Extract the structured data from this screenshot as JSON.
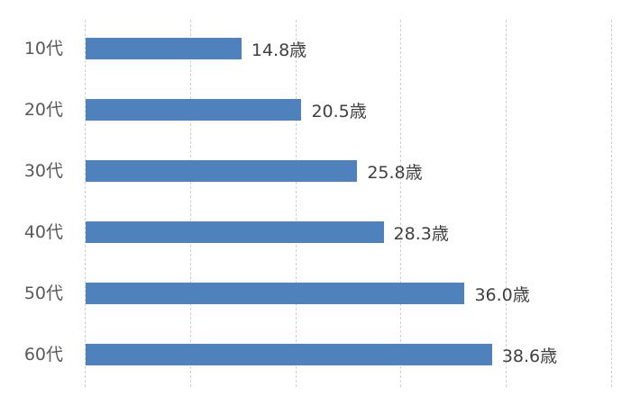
{
  "chart_data": {
    "type": "bar",
    "orientation": "horizontal",
    "title": "",
    "xlabel": "",
    "ylabel": "",
    "categories": [
      "10代",
      "20代",
      "30代",
      "40代",
      "50代",
      "60代"
    ],
    "values": [
      14.8,
      20.5,
      25.8,
      28.3,
      36.0,
      38.6
    ],
    "data_labels": [
      "14.8歳",
      "20.5歳",
      "25.8歳",
      "28.3歳",
      "36.0歳",
      "38.6歳"
    ],
    "xlim": [
      0,
      50
    ],
    "grid": {
      "vertical": true,
      "step": 10
    },
    "legend": null,
    "bar_color": "#4f81bd"
  }
}
